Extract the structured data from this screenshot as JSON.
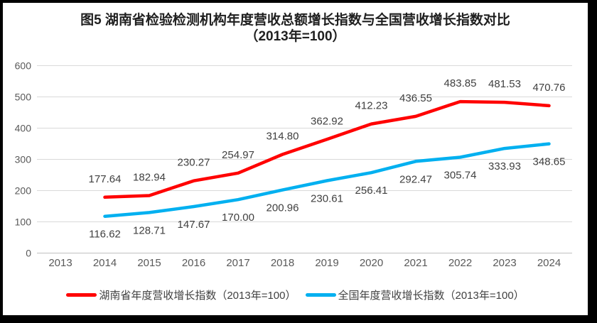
{
  "title": {
    "line1": "图5 湖南省检验检测机构年度营收总额增长指数与全国营收增长指数对比",
    "line2": "（2013年=100）"
  },
  "chart_data": {
    "type": "line",
    "title": "图5 湖南省检验检测机构年度营收总额增长指数与全国营收增长指数对比（2013年=100）",
    "categories": [
      "2013",
      "2014",
      "2015",
      "2016",
      "2017",
      "2018",
      "2019",
      "2020",
      "2021",
      "2022",
      "2023",
      "2024"
    ],
    "series": [
      {
        "name": "湖南省年度营收增长指数（2013年=100）",
        "color": "#FF0000",
        "label_position": "above",
        "values": [
          null,
          177.64,
          182.94,
          230.27,
          254.97,
          314.8,
          362.92,
          412.23,
          436.55,
          483.85,
          481.53,
          470.76
        ]
      },
      {
        "name": "全国年度营收增长指数（2013年=100）",
        "color": "#00B0F0",
        "label_position": "below",
        "values": [
          null,
          116.62,
          128.71,
          147.67,
          170.0,
          200.96,
          230.61,
          256.41,
          292.47,
          305.74,
          333.93,
          348.65
        ]
      }
    ],
    "xlabel": "",
    "ylabel": "",
    "ylim": [
      0,
      600
    ],
    "y_ticks": [
      0,
      100,
      200,
      300,
      400,
      500,
      600
    ],
    "grid": true,
    "legend_position": "bottom",
    "colors": {
      "grid": "#D9D9D9",
      "axis_line": "#C0C0C0",
      "axis_text": "#595959",
      "data_label": "#404040",
      "title_text": "#1F1F1F",
      "frame_border": "#000000",
      "background": "#FFFFFF"
    }
  }
}
